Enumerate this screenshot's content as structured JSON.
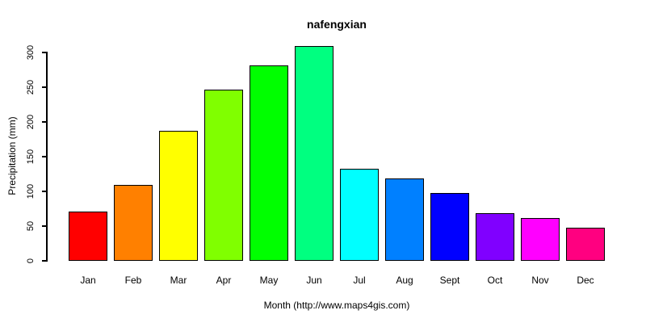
{
  "chart_data": {
    "type": "bar",
    "title": "nafengxian",
    "xlabel": "Month (http://www.maps4gis.com)",
    "ylabel": "Precipitation (mm)",
    "categories": [
      "Jan",
      "Feb",
      "Mar",
      "Apr",
      "May",
      "Jun",
      "Jul",
      "Aug",
      "Sept",
      "Oct",
      "Nov",
      "Dec"
    ],
    "values": [
      70,
      108,
      186,
      245,
      280,
      308,
      131,
      118,
      96,
      67,
      60,
      46
    ],
    "bar_colors": [
      "#FF0000",
      "#FF8000",
      "#FFFF00",
      "#80FF00",
      "#00FF00",
      "#00FF80",
      "#00FFFF",
      "#0080FF",
      "#0000FF",
      "#8000FF",
      "#FF00FF",
      "#FF0080"
    ],
    "yticks": [
      0,
      50,
      100,
      150,
      200,
      250,
      300
    ],
    "ylim": [
      0,
      310
    ],
    "grid": false,
    "legend": null,
    "axis_color": "#000000",
    "background_color": "#FFFFFF"
  }
}
